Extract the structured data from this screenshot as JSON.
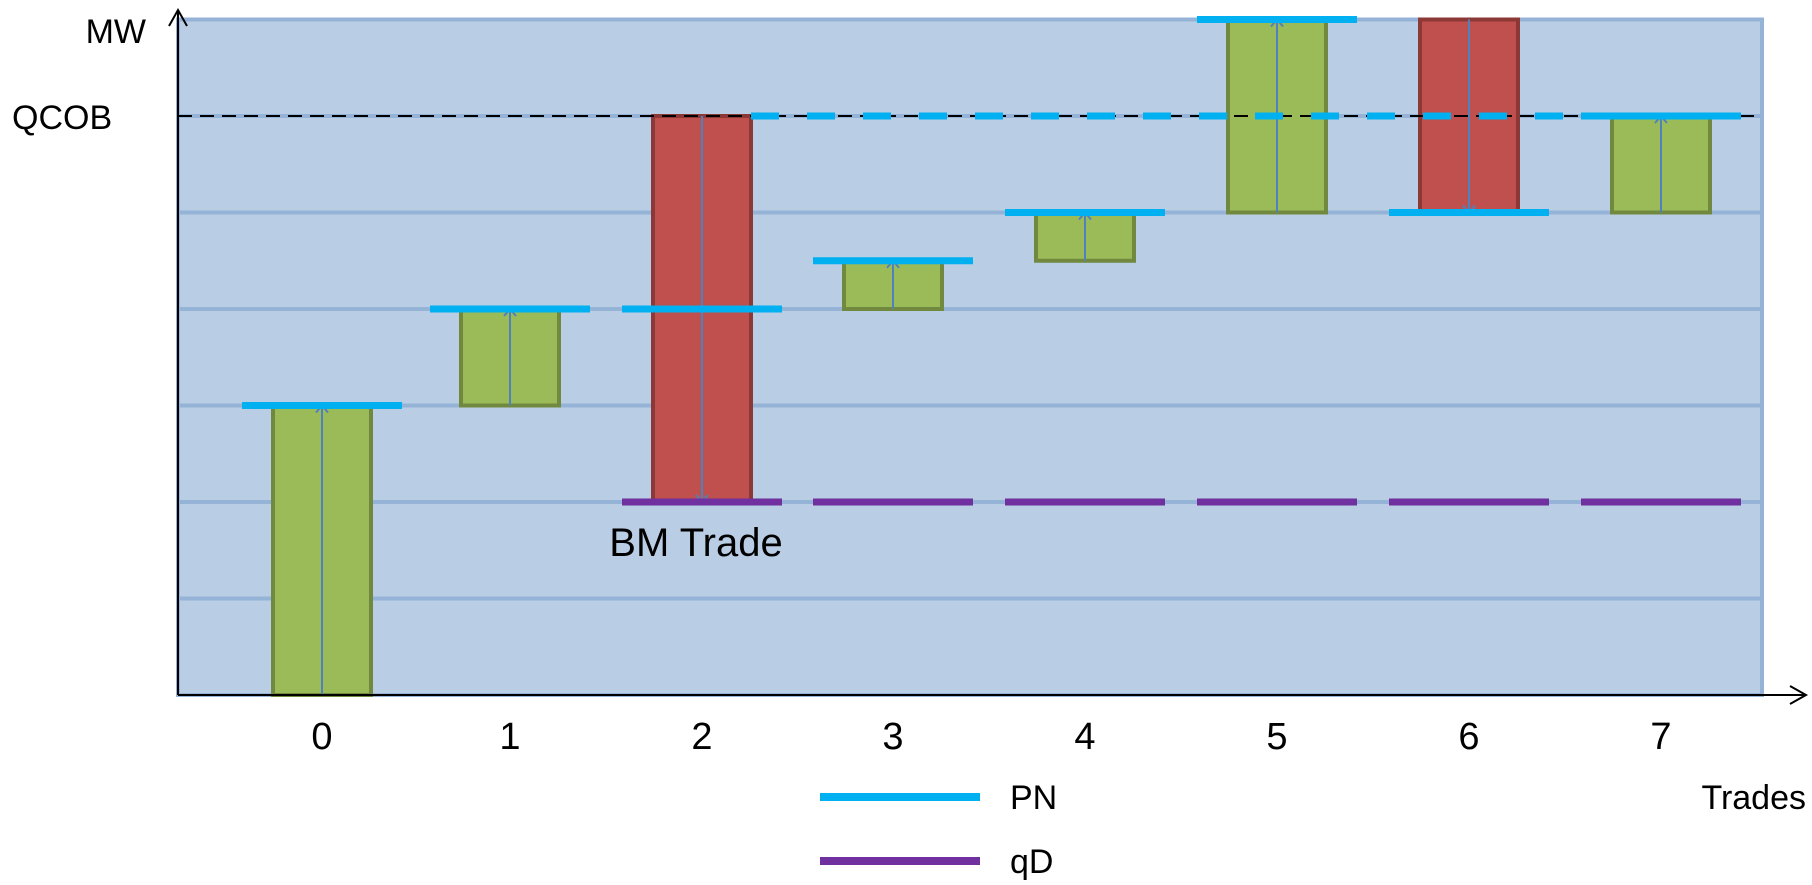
{
  "chart_data": {
    "type": "bar",
    "title": "",
    "xlabel": "Trades",
    "ylabel": "MW",
    "ylim": [
      0,
      7
    ],
    "grid": true,
    "legend_position": "bottom",
    "reference_line": {
      "label": "QCOB",
      "value": 6
    },
    "annotation": {
      "text": "BM Trade",
      "trade": 2
    },
    "categories": [
      "0",
      "1",
      "2",
      "3",
      "4",
      "5",
      "6",
      "7"
    ],
    "bars": [
      {
        "trade": 0,
        "from": 0,
        "to": 3,
        "direction": "up",
        "color": "#9BBB59"
      },
      {
        "trade": 1,
        "from": 3,
        "to": 4,
        "direction": "up",
        "color": "#9BBB59"
      },
      {
        "trade": 2,
        "from": 6,
        "to": 2,
        "direction": "down",
        "color": "#C0504D"
      },
      {
        "trade": 3,
        "from": 4,
        "to": 4.5,
        "direction": "up",
        "color": "#9BBB59"
      },
      {
        "trade": 4,
        "from": 4.5,
        "to": 5,
        "direction": "up",
        "color": "#9BBB59"
      },
      {
        "trade": 5,
        "from": 5,
        "to": 7,
        "direction": "up",
        "color": "#9BBB59"
      },
      {
        "trade": 6,
        "from": 7,
        "to": 5,
        "direction": "down",
        "color": "#C0504D"
      },
      {
        "trade": 7,
        "from": 5,
        "to": 6,
        "direction": "up",
        "color": "#9BBB59"
      }
    ],
    "series": [
      {
        "name": "PN",
        "color": "#00B0F0",
        "values": [
          3,
          4,
          4,
          4.5,
          5,
          7,
          5,
          6
        ]
      },
      {
        "name": "qD",
        "color": "#7030A0",
        "values": [
          null,
          null,
          2,
          2,
          2,
          2,
          2,
          2
        ]
      }
    ],
    "colors": {
      "plot_background": "#B9CDE5",
      "gridline": "#95B3D7",
      "increase_bar": "#9BBB59",
      "decrease_bar": "#C0504D",
      "arrow": "#4F81BD"
    }
  }
}
